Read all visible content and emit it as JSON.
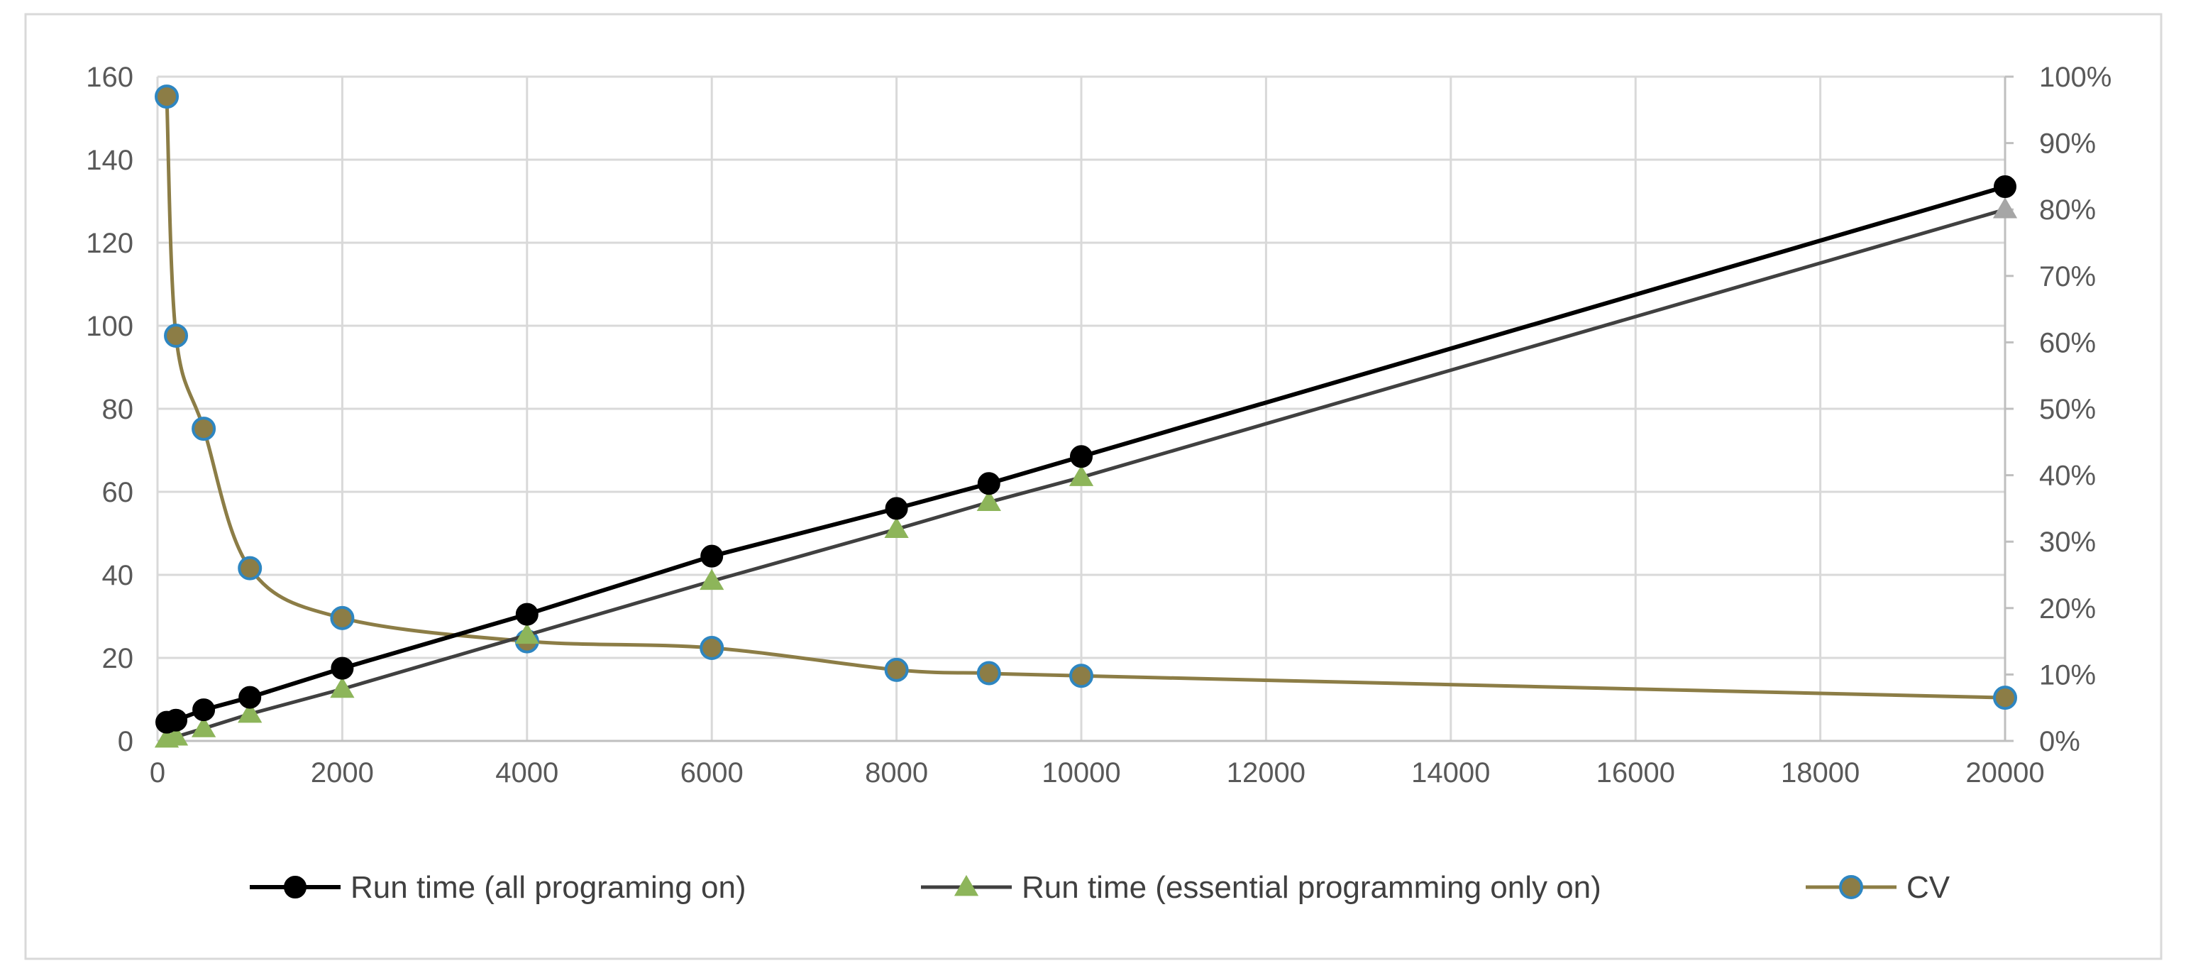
{
  "chart_data": {
    "type": "line",
    "title": "",
    "xlabel": "",
    "ylabel": "",
    "y2label": "",
    "xlim": [
      0,
      20000
    ],
    "ylim": [
      0,
      160
    ],
    "y2lim": [
      0,
      1
    ],
    "grid": true,
    "legend_position": "bottom",
    "x_ticks": [
      0,
      2000,
      4000,
      6000,
      8000,
      10000,
      12000,
      14000,
      16000,
      18000,
      20000
    ],
    "x_tick_labels": [
      "0",
      "2000",
      "4000",
      "6000",
      "8000",
      "10000",
      "12000",
      "14000",
      "16000",
      "18000",
      "20000"
    ],
    "y_ticks": [
      0,
      20,
      40,
      60,
      80,
      100,
      120,
      140,
      160
    ],
    "y_tick_labels": [
      "0",
      "20",
      "40",
      "60",
      "80",
      "100",
      "120",
      "140",
      "160"
    ],
    "y2_ticks": [
      0,
      0.1,
      0.2,
      0.3,
      0.4,
      0.5,
      0.6,
      0.7,
      0.8,
      0.9,
      1.0
    ],
    "y2_tick_labels": [
      "0%",
      "10%",
      "20%",
      "30%",
      "40%",
      "50%",
      "60%",
      "70%",
      "80%",
      "90%",
      "100%"
    ],
    "series": [
      {
        "name": "Run time (all programing on)",
        "axis": "left",
        "marker": "circle",
        "color": "#000000",
        "marker_fill": "#000000",
        "marker_stroke": "#000000",
        "smooth": false,
        "x": [
          100,
          200,
          500,
          1000,
          2000,
          4000,
          6000,
          8000,
          9000,
          10000,
          20000
        ],
        "values": [
          4.5,
          5,
          7.5,
          10.5,
          17.5,
          30.5,
          44.5,
          56,
          62,
          68.5,
          133.5
        ]
      },
      {
        "name": "Run time (essential programming only on)",
        "axis": "left",
        "marker": "triangle",
        "color": "#404040",
        "marker_fill": "#8db55a",
        "marker_stroke": "#8db55a",
        "last_marker_fill": "#a6a6a6",
        "smooth": false,
        "x": [
          100,
          200,
          500,
          1000,
          2000,
          4000,
          6000,
          8000,
          9000,
          10000,
          20000
        ],
        "values": [
          0.5,
          1,
          3,
          6.5,
          12.5,
          25.5,
          38.5,
          51,
          57.5,
          63.5,
          128
        ]
      },
      {
        "name": "CV",
        "axis": "right",
        "marker": "circle",
        "color": "#8c7d46",
        "marker_fill": "#8c7d46",
        "marker_stroke": "#2e86c1",
        "smooth": true,
        "x": [
          100,
          200,
          500,
          1000,
          2000,
          4000,
          6000,
          8000,
          9000,
          10000,
          20000
        ],
        "values": [
          0.97,
          0.61,
          0.47,
          0.26,
          0.185,
          0.15,
          0.14,
          0.107,
          0.102,
          0.098,
          0.065
        ]
      }
    ]
  }
}
